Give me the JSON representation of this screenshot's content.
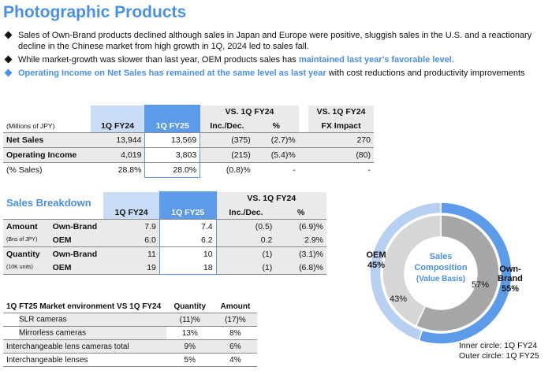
{
  "title": "Photographic Products",
  "bullets": [
    {
      "parts": [
        {
          "text": "Sales of Own-Brand products declined although sales in Japan and Europe were positive, sluggish sales in the U.S. and a reactionary decline in the Chinese market from high growth in 1Q, 2024 led to sales fall.",
          "hl": false
        }
      ],
      "marker": "dark"
    },
    {
      "parts": [
        {
          "text": "While market-growth was slower than last year, OEM products sales has ",
          "hl": false
        },
        {
          "text": "maintained last year's favorable level",
          "hl": true
        },
        {
          "text": ".",
          "hl": false
        }
      ],
      "marker": "dark"
    },
    {
      "parts": [
        {
          "text": "Operating Income on Net Sales has remained at the same level as last year",
          "hl": true
        },
        {
          "text": " with cost reductions and productivity improvements",
          "hl": false
        }
      ],
      "marker": "blue"
    }
  ],
  "main_table": {
    "unit_label": "(Millions of JPY)",
    "col_prev": "1Q FY24",
    "col_cur": "1Q FY25",
    "vs_label": "VS. 1Q FY24",
    "vs2_label": "VS. 1Q FY24",
    "inc_dec": "Inc./Dec.",
    "pct": "%",
    "fx": "FX Impact",
    "rows": [
      {
        "label": "Net Sales",
        "prev": "13,944",
        "cur": "13,569",
        "inc": "(375)",
        "pct": "(2.7)%",
        "fx": "270"
      },
      {
        "label": "Operating Income",
        "prev": "4,019",
        "cur": "3,803",
        "inc": "(215)",
        "pct": "(5.4)%",
        "fx": "(80)"
      },
      {
        "label": "(% Sales)",
        "prev": "28.8%",
        "cur": "28.0%",
        "inc": "(0.8)%",
        "pct": "-",
        "fx": "-"
      }
    ]
  },
  "breakdown": {
    "title": "Sales Breakdown",
    "col_prev": "1Q FY24",
    "col_cur": "1Q FY25",
    "vs_label": "VS. 1Q FY24",
    "inc_dec": "Inc./Dec.",
    "pct": "%",
    "amount_label": "Amount",
    "amount_unit": "(Bns of JPY)",
    "quantity_label": "Quantity",
    "quantity_unit": "(10K units)",
    "rows": [
      {
        "sub": "Own-Brand",
        "prev": "7.9",
        "cur": "7.4",
        "inc": "(0.5)",
        "pct": "(6.9)%"
      },
      {
        "sub": "OEM",
        "prev": "6.0",
        "cur": "6.2",
        "inc": "0.2",
        "pct": "2.9%"
      },
      {
        "sub": "Own-Brand",
        "prev": "11",
        "cur": "10",
        "inc": "(1)",
        "pct": "(3.1)%"
      },
      {
        "sub": "OEM",
        "prev": "19",
        "cur": "18",
        "inc": "(1)",
        "pct": "(6.8)%"
      }
    ]
  },
  "market": {
    "title": "1Q FT25 Market environment VS 1Q FY24",
    "col_qty": "Quantity",
    "col_amt": "Amount",
    "rows": [
      {
        "label": "SLR cameras",
        "qty": "(11)%",
        "amt": "(17)%"
      },
      {
        "label": "Mirrorless cameras",
        "qty": "13%",
        "amt": "8%"
      },
      {
        "label": "Interchangeable lens cameras total",
        "qty": "9%",
        "amt": "6%"
      },
      {
        "label": "Interchangeable lenses",
        "qty": "5%",
        "amt": "4%"
      }
    ]
  },
  "chart_data": {
    "type": "pie",
    "title": "Sales Composition",
    "subtitle": "(Value Basis)",
    "rings": [
      {
        "name": "Inner circle: 1Q FY24",
        "categories": [
          "Own-Brand",
          "OEM"
        ],
        "values": [
          57,
          43
        ],
        "labels": [
          "57%",
          "43%"
        ]
      },
      {
        "name": "Outer circle: 1Q FY25",
        "categories": [
          "Own-Brand",
          "OEM"
        ],
        "values": [
          55,
          45
        ],
        "labels": [
          "Own-\nBrand\n55%",
          "OEM\n45%"
        ]
      }
    ],
    "colors": {
      "outer_own": "#5b9bea",
      "outer_oem": "#b7d0f2",
      "inner_own": "#a6a6a6",
      "inner_oem": "#d6d6d6"
    },
    "legend": [
      "Inner circle: 1Q FY24",
      "Outer circle: 1Q FY25"
    ]
  },
  "chart_text": {
    "title_line1": "Sales",
    "title_line2": "Composition",
    "title_line3": "(Value Basis)",
    "inner_own": "57%",
    "inner_oem": "43%",
    "outer_own_1": "Own-",
    "outer_own_2": "Brand",
    "outer_own_3": "55%",
    "outer_oem_1": "OEM",
    "outer_oem_2": "45%"
  }
}
